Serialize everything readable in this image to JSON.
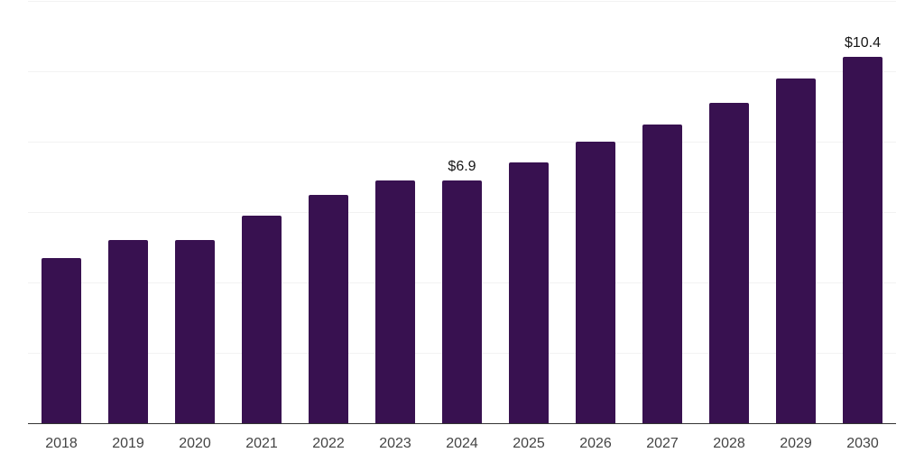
{
  "chart_data": {
    "type": "bar",
    "title": "",
    "xlabel": "",
    "ylabel": "",
    "categories": [
      "2018",
      "2019",
      "2020",
      "2021",
      "2022",
      "2023",
      "2024",
      "2025",
      "2026",
      "2027",
      "2028",
      "2029",
      "2030"
    ],
    "values": [
      4.7,
      5.2,
      5.2,
      5.9,
      6.5,
      6.9,
      6.9,
      7.4,
      8.0,
      8.5,
      9.1,
      9.8,
      10.4
    ],
    "data_labels": [
      "",
      "",
      "",
      "",
      "",
      "",
      "$6.9",
      "",
      "",
      "",
      "",
      "",
      "$10.4"
    ],
    "ylim": [
      0,
      12
    ],
    "gridline_step": 2,
    "grid": true,
    "legend": false,
    "y_axis_tick_labels_visible": false,
    "colors": {
      "bar": "#381150",
      "gridline": "#f2f2f2",
      "axis": "#333333",
      "data_label": "#161616",
      "tick_label": "#444444",
      "background": "#ffffff"
    }
  }
}
